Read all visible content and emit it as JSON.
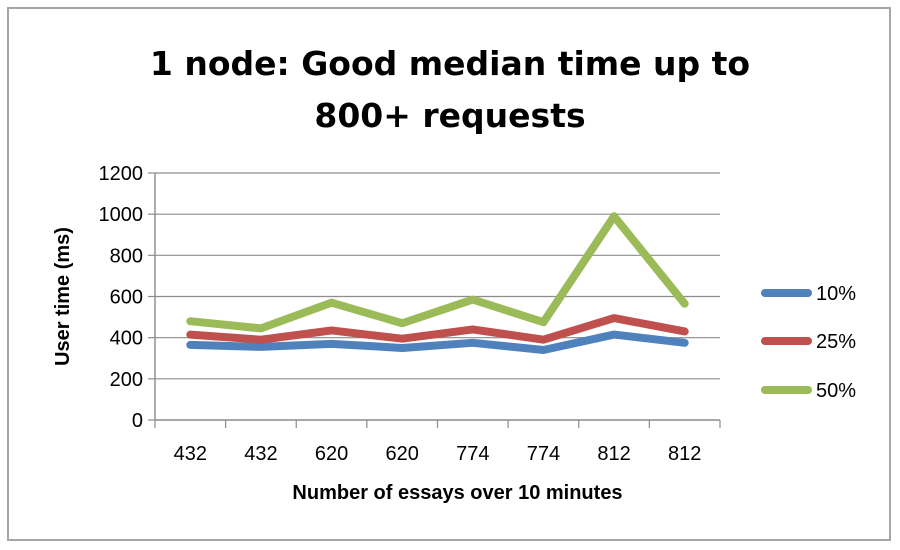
{
  "chart_data": {
    "type": "line",
    "title": "1 node: Good median time up to\n800+ requests",
    "xlabel": "Number of essays over 10 minutes",
    "ylabel": "User time (ms)",
    "categories": [
      "432",
      "432",
      "620",
      "620",
      "774",
      "774",
      "812",
      "812"
    ],
    "ylim": [
      0,
      1200
    ],
    "yticks": [
      "0",
      "200",
      "400",
      "600",
      "800",
      "1000",
      "1200"
    ],
    "grid": true,
    "legend_position": "right",
    "series": [
      {
        "name": "10%",
        "color": "#4f81bd",
        "values": [
          365,
          355,
          370,
          350,
          375,
          340,
          415,
          375
        ]
      },
      {
        "name": "25%",
        "color": "#c0504d",
        "values": [
          415,
          390,
          435,
          395,
          440,
          390,
          495,
          430
        ]
      },
      {
        "name": "50%",
        "color": "#9bbb59",
        "values": [
          480,
          445,
          570,
          470,
          585,
          475,
          990,
          565
        ]
      }
    ]
  }
}
